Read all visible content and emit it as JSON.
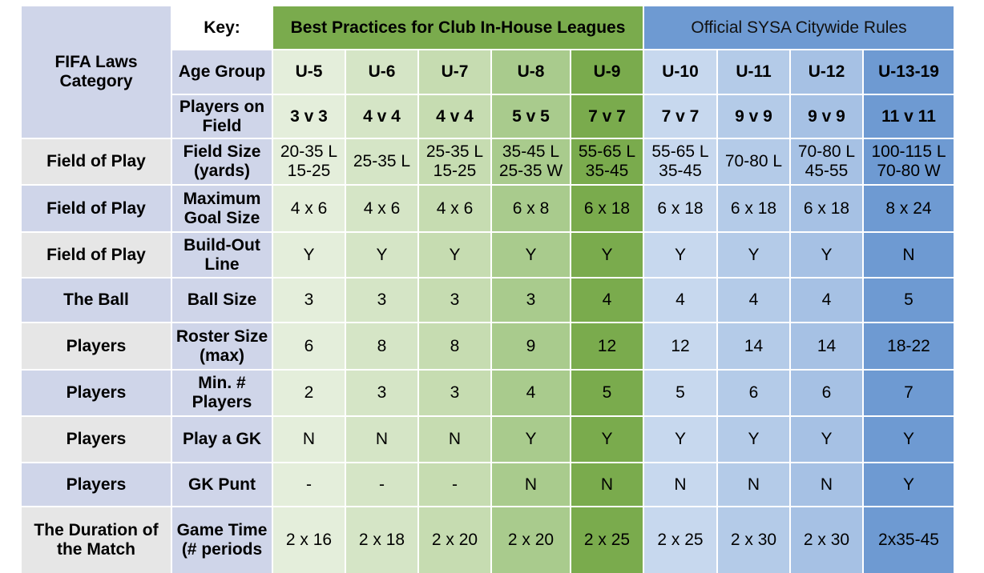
{
  "corner_label": "FIFA Laws Category",
  "key_label": "Key:",
  "best_practices_header": "Best Practices for Club In-House Leagues",
  "official_rules_header": "Official SYSA Citywide Rules",
  "age_group_label": "Age Group",
  "age_groups": [
    "U-5",
    "U-6",
    "U-7",
    "U-8",
    "U-9",
    "U-10",
    "U-11",
    "U-12",
    "U-13-19"
  ],
  "players_label": "Players on Field",
  "players_on_field": [
    "3 v 3",
    "4 v 4",
    "4 v 4",
    "5 v 5",
    "7 v 7",
    "7 v 7",
    "9 v 9",
    "9 v 9",
    "11 v 11"
  ],
  "rows": [
    {
      "category": "Field of Play",
      "rule": "Field Size (yards)",
      "values": [
        "20-35 L 15-25",
        "25-35 L",
        "25-35 L 15-25",
        "35-45 L 25-35 W",
        "55-65 L 35-45",
        "55-65 L 35-45",
        "70-80 L",
        "70-80 L 45-55",
        "100-115 L 70-80 W"
      ]
    },
    {
      "category": "Field of Play",
      "rule": "Maximum Goal Size",
      "values": [
        "4 x 6",
        "4 x 6",
        "4 x 6",
        "6 x 8",
        "6 x 18",
        "6 x 18",
        "6 x 18",
        "6 x 18",
        "8 x 24"
      ]
    },
    {
      "category": "Field of Play",
      "rule": "Build-Out Line",
      "values": [
        "Y",
        "Y",
        "Y",
        "Y",
        "Y",
        "Y",
        "Y",
        "Y",
        "N"
      ]
    },
    {
      "category": "The Ball",
      "rule": "Ball Size",
      "values": [
        "3",
        "3",
        "3",
        "3",
        "4",
        "4",
        "4",
        "4",
        "5"
      ]
    },
    {
      "category": "Players",
      "rule": "Roster Size (max)",
      "values": [
        "6",
        "8",
        "8",
        "9",
        "12",
        "12",
        "14",
        "14",
        "18-22"
      ]
    },
    {
      "category": "Players",
      "rule": "Min. # Players",
      "values": [
        "2",
        "3",
        "3",
        "4",
        "5",
        "5",
        "6",
        "6",
        "7"
      ]
    },
    {
      "category": "Players",
      "rule": "Play a GK",
      "values": [
        "N",
        "N",
        "N",
        "Y",
        "Y",
        "Y",
        "Y",
        "Y",
        "Y"
      ]
    },
    {
      "category": "Players",
      "rule": "GK Punt",
      "values": [
        "-",
        "-",
        "-",
        "N",
        "N",
        "N",
        "N",
        "N",
        "Y"
      ]
    },
    {
      "category": "The Duration of the Match",
      "rule": "Game Time (# periods",
      "values": [
        "2 x 16",
        "2 x 18",
        "2 x 20",
        "2 x 20",
        "2 x 25",
        "2 x 25",
        "2 x 30",
        "2 x 30",
        "2x35-45"
      ]
    }
  ],
  "colors": {
    "green_header": "#7aab4d",
    "blue_header": "#6e9ad2",
    "category_gray": "#e6e6e6",
    "category_lavender": "#cfd5e9"
  }
}
